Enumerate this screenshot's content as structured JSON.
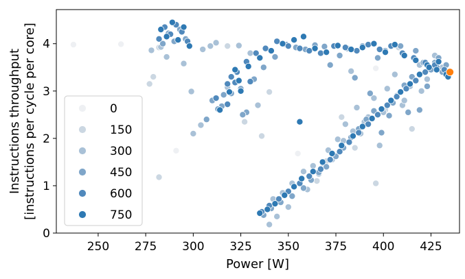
{
  "chart_data": {
    "type": "scatter",
    "title": "",
    "xlabel": "Power [W]",
    "ylabel_lines": [
      "Instructions throughput",
      "[instructions per cycle per core]"
    ],
    "xlim": [
      228,
      440
    ],
    "ylim": [
      0,
      4.72
    ],
    "xticks": [
      250,
      275,
      300,
      325,
      350,
      375,
      400,
      425
    ],
    "yticks": [
      0,
      1,
      2,
      3,
      4
    ],
    "grid": false,
    "legend": {
      "position": "lower-left",
      "entries": [
        {
          "label": "0",
          "color": "#eef0f3"
        },
        {
          "label": "150",
          "color": "#cbd7e2"
        },
        {
          "label": "300",
          "color": "#a9c1d7"
        },
        {
          "label": "450",
          "color": "#7fa6c9"
        },
        {
          "label": "600",
          "color": "#5089bc"
        },
        {
          "label": "750",
          "color": "#2e79b3"
        }
      ]
    },
    "highlight": {
      "x": 435,
      "y": 3.4,
      "color": "#ff7f0e"
    },
    "series": [
      {
        "name": "0",
        "color": "#eef0f3",
        "x": [
          237,
          262,
          291,
          355,
          396
        ],
        "y": [
          3.98,
          3.99,
          1.74,
          1.68,
          3.48
        ]
      },
      {
        "name": "150",
        "color": "#cbd7e2",
        "x": [
          277,
          279,
          282,
          282,
          318,
          327,
          336,
          340,
          365,
          370,
          378,
          385,
          396,
          401,
          408,
          415
        ],
        "y": [
          3.15,
          3.3,
          1.18,
          3.92,
          3.95,
          2.35,
          2.05,
          2.98,
          1.1,
          1.52,
          2.45,
          1.8,
          1.05,
          2.6,
          3.92,
          2.2
        ]
      },
      {
        "name": "300",
        "color": "#a9c1d7",
        "x": [
          278,
          283,
          286,
          295,
          299,
          305,
          312,
          318,
          324,
          330,
          334,
          338,
          342,
          347,
          352,
          358,
          363,
          368,
          371,
          376,
          380,
          383,
          386,
          388,
          392,
          395,
          398,
          402,
          406,
          410,
          414,
          419,
          423,
          427,
          431,
          300,
          304,
          309,
          350,
          344,
          340,
          360,
          366,
          373,
          379,
          384,
          390,
          400,
          411,
          420
        ],
        "y": [
          3.86,
          3.93,
          3.72,
          3.58,
          2.99,
          3.88,
          4.02,
          3.08,
          3.96,
          3.8,
          2.7,
          3.9,
          0.72,
          0.85,
          1.05,
          1.3,
          1.42,
          1.48,
          1.75,
          1.98,
          2.3,
          3.42,
          2.65,
          2.1,
          2.45,
          2.85,
          1.85,
          3.05,
          3.35,
          2.7,
          3.1,
          3.55,
          3.25,
          3.75,
          3.5,
          2.1,
          2.28,
          3.95,
          0.55,
          0.35,
          0.18,
          0.92,
          1.25,
          1.55,
          1.95,
          2.15,
          2.35,
          2.55,
          2.8,
          3.0
        ]
      },
      {
        "name": "450",
        "color": "#7fa6c9",
        "x": [
          284,
          287,
          290,
          293,
          296,
          307,
          315,
          320,
          325,
          332,
          337,
          343,
          349,
          354,
          359,
          364,
          369,
          372,
          377,
          381,
          385,
          389,
          393,
          397,
          401,
          405,
          409,
          413,
          417,
          421,
          425,
          429,
          433,
          337,
          341,
          346,
          352,
          358,
          362,
          366,
          370,
          375,
          379,
          383,
          387,
          391,
          395,
          399,
          403,
          407,
          411,
          415,
          419,
          423,
          427,
          431,
          328,
          326,
          310,
          313,
          316
        ],
        "y": [
          4.0,
          4.22,
          4.05,
          4.3,
          4.1,
          2.4,
          2.68,
          2.95,
          3.05,
          3.25,
          3.5,
          3.72,
          3.98,
          3.92,
          3.88,
          3.97,
          3.94,
          3.55,
          3.75,
          3.9,
          3.28,
          3.95,
          2.95,
          3.7,
          3.85,
          2.75,
          3.95,
          2.55,
          3.85,
          3.6,
          3.45,
          3.7,
          3.55,
          0.38,
          0.52,
          0.65,
          0.78,
          0.95,
          1.12,
          1.28,
          1.4,
          1.62,
          1.8,
          2.02,
          2.2,
          2.4,
          2.58,
          2.12,
          2.48,
          2.9,
          3.12,
          3.3,
          2.6,
          3.1,
          3.6,
          3.4,
          2.55,
          2.5,
          2.8,
          2.62,
          2.92
        ]
      },
      {
        "name": "600",
        "color": "#5089bc",
        "x": [
          282,
          285,
          288,
          291,
          294,
          297,
          312,
          318,
          323,
          328,
          333,
          338,
          344,
          350,
          356,
          361,
          367,
          374,
          380,
          386,
          392,
          398,
          404,
          410,
          416,
          422,
          428,
          336,
          340,
          345,
          350,
          356,
          361,
          367,
          372,
          377,
          382,
          387,
          392,
          397,
          402,
          407,
          412,
          417,
          422,
          427,
          432,
          320,
          318,
          322,
          330
        ],
        "y": [
          4.1,
          4.35,
          4.2,
          4.4,
          4.25,
          4.05,
          2.85,
          3.15,
          3.4,
          3.62,
          3.8,
          3.9,
          4.05,
          3.95,
          3.9,
          3.85,
          3.8,
          3.95,
          3.92,
          3.85,
          3.98,
          3.88,
          3.95,
          3.8,
          3.7,
          3.6,
          3.5,
          0.45,
          0.58,
          0.72,
          0.88,
          1.05,
          1.2,
          1.35,
          1.55,
          1.72,
          1.92,
          2.12,
          2.3,
          2.5,
          2.7,
          2.88,
          3.05,
          3.22,
          3.4,
          3.55,
          3.45,
          3.3,
          2.72,
          3.18,
          3.2
        ]
      },
      {
        "name": "750",
        "color": "#2e79b3",
        "x": [
          283,
          286,
          289,
          292,
          295,
          298,
          314,
          319,
          324,
          329,
          335,
          341,
          347,
          353,
          358,
          364,
          370,
          376,
          383,
          389,
          395,
          401,
          406,
          411,
          417,
          423,
          428,
          433,
          335,
          339,
          343,
          348,
          353,
          357,
          363,
          368,
          373,
          378,
          384,
          389,
          394,
          399,
          404,
          409,
          414,
          419,
          424,
          429,
          434,
          356,
          322,
          325
        ],
        "y": [
          4.3,
          4.15,
          4.45,
          4.08,
          4.35,
          3.95,
          2.6,
          2.98,
          3.22,
          3.52,
          3.7,
          3.85,
          4.0,
          4.08,
          4.15,
          3.9,
          3.82,
          3.96,
          3.88,
          3.92,
          4.0,
          3.82,
          3.98,
          3.75,
          3.65,
          3.55,
          3.45,
          3.35,
          0.42,
          0.5,
          0.62,
          0.8,
          0.98,
          1.15,
          1.3,
          1.5,
          1.68,
          1.85,
          2.05,
          2.25,
          2.42,
          2.62,
          2.8,
          2.98,
          3.15,
          3.35,
          3.5,
          3.62,
          3.3,
          2.35,
          3.45,
          3.0
        ]
      }
    ]
  }
}
